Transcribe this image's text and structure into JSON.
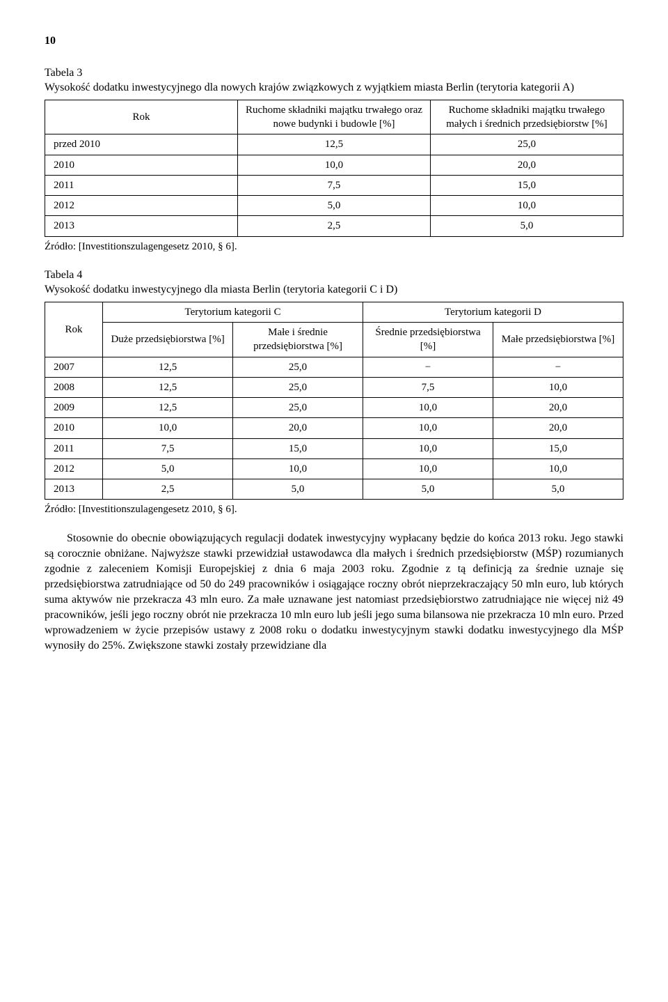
{
  "page_number": "10",
  "table3": {
    "caption_line1": "Tabela 3",
    "caption_line2": "Wysokość dodatku inwestycyjnego dla nowych krajów związkowych z wyjątkiem miasta Berlin (terytoria kategorii A)",
    "headers": {
      "rok": "Rok",
      "col1": "Ruchome składniki majątku trwałego oraz nowe budynki i budowle [%]",
      "col2": "Ruchome składniki majątku trwałego małych i średnich przedsiębiorstw [%]"
    },
    "rows": [
      {
        "rok": "przed 2010",
        "c1": "12,5",
        "c2": "25,0"
      },
      {
        "rok": "2010",
        "c1": "10,0",
        "c2": "20,0"
      },
      {
        "rok": "2011",
        "c1": "7,5",
        "c2": "15,0"
      },
      {
        "rok": "2012",
        "c1": "5,0",
        "c2": "10,0"
      },
      {
        "rok": "2013",
        "c1": "2,5",
        "c2": "5,0"
      }
    ],
    "source": "Źródło: [Investitionszulagengesetz 2010, § 6]."
  },
  "table4": {
    "caption_line1": "Tabela 4",
    "caption_line2": "Wysokość dodatku inwestycyjnego dla miasta Berlin (terytoria kategorii C i D)",
    "headers": {
      "rok": "Rok",
      "group_c": "Terytorium kategorii C",
      "group_d": "Terytorium kategorii D",
      "c_large": "Duże przedsiębiorstwa [%]",
      "c_small": "Małe i średnie przedsiębiorstwa [%]",
      "d_med": "Średnie przedsiębiorstwa [%]",
      "d_small": "Małe przedsiębiorstwa [%]"
    },
    "rows": [
      {
        "rok": "2007",
        "c1": "12,5",
        "c2": "25,0",
        "c3": "−",
        "c4": "−"
      },
      {
        "rok": "2008",
        "c1": "12,5",
        "c2": "25,0",
        "c3": "7,5",
        "c4": "10,0"
      },
      {
        "rok": "2009",
        "c1": "12,5",
        "c2": "25,0",
        "c3": "10,0",
        "c4": "20,0"
      },
      {
        "rok": "2010",
        "c1": "10,0",
        "c2": "20,0",
        "c3": "10,0",
        "c4": "20,0"
      },
      {
        "rok": "2011",
        "c1": "7,5",
        "c2": "15,0",
        "c3": "10,0",
        "c4": "15,0"
      },
      {
        "rok": "2012",
        "c1": "5,0",
        "c2": "10,0",
        "c3": "10,0",
        "c4": "10,0"
      },
      {
        "rok": "2013",
        "c1": "2,5",
        "c2": "5,0",
        "c3": "5,0",
        "c4": "5,0"
      }
    ],
    "source": "Źródło: [Investitionszulagengesetz 2010, § 6]."
  },
  "body_paragraph": "Stosownie do obecnie obowiązujących regulacji dodatek inwestycyjny wypłacany będzie do końca 2013 roku. Jego stawki są corocznie obniżane. Najwyższe stawki przewidział ustawodawca dla małych i średnich przedsiębiorstw (MŚP) rozumianych zgodnie z zaleceniem Komisji Europejskiej z dnia 6 maja 2003 roku. Zgodnie z tą definicją za średnie uznaje się przedsiębiorstwa zatrudniające od 50 do 249 pracowników i osiągające roczny obrót nieprzekraczający 50 mln euro, lub których suma aktywów nie przekracza 43 mln euro. Za małe uznawane jest natomiast przedsiębiorstwo zatrudniające nie więcej niż 49 pracowników, jeśli jego roczny obrót nie przekracza 10 mln euro lub jeśli jego suma bilansowa nie przekracza 10 mln euro. Przed wprowadzeniem w życie przepisów ustawy z 2008 roku o dodatku inwestycyjnym stawki dodatku inwestycyjnego dla MŚP wynosiły do 25%. Zwiększone stawki zostały przewidziane dla"
}
